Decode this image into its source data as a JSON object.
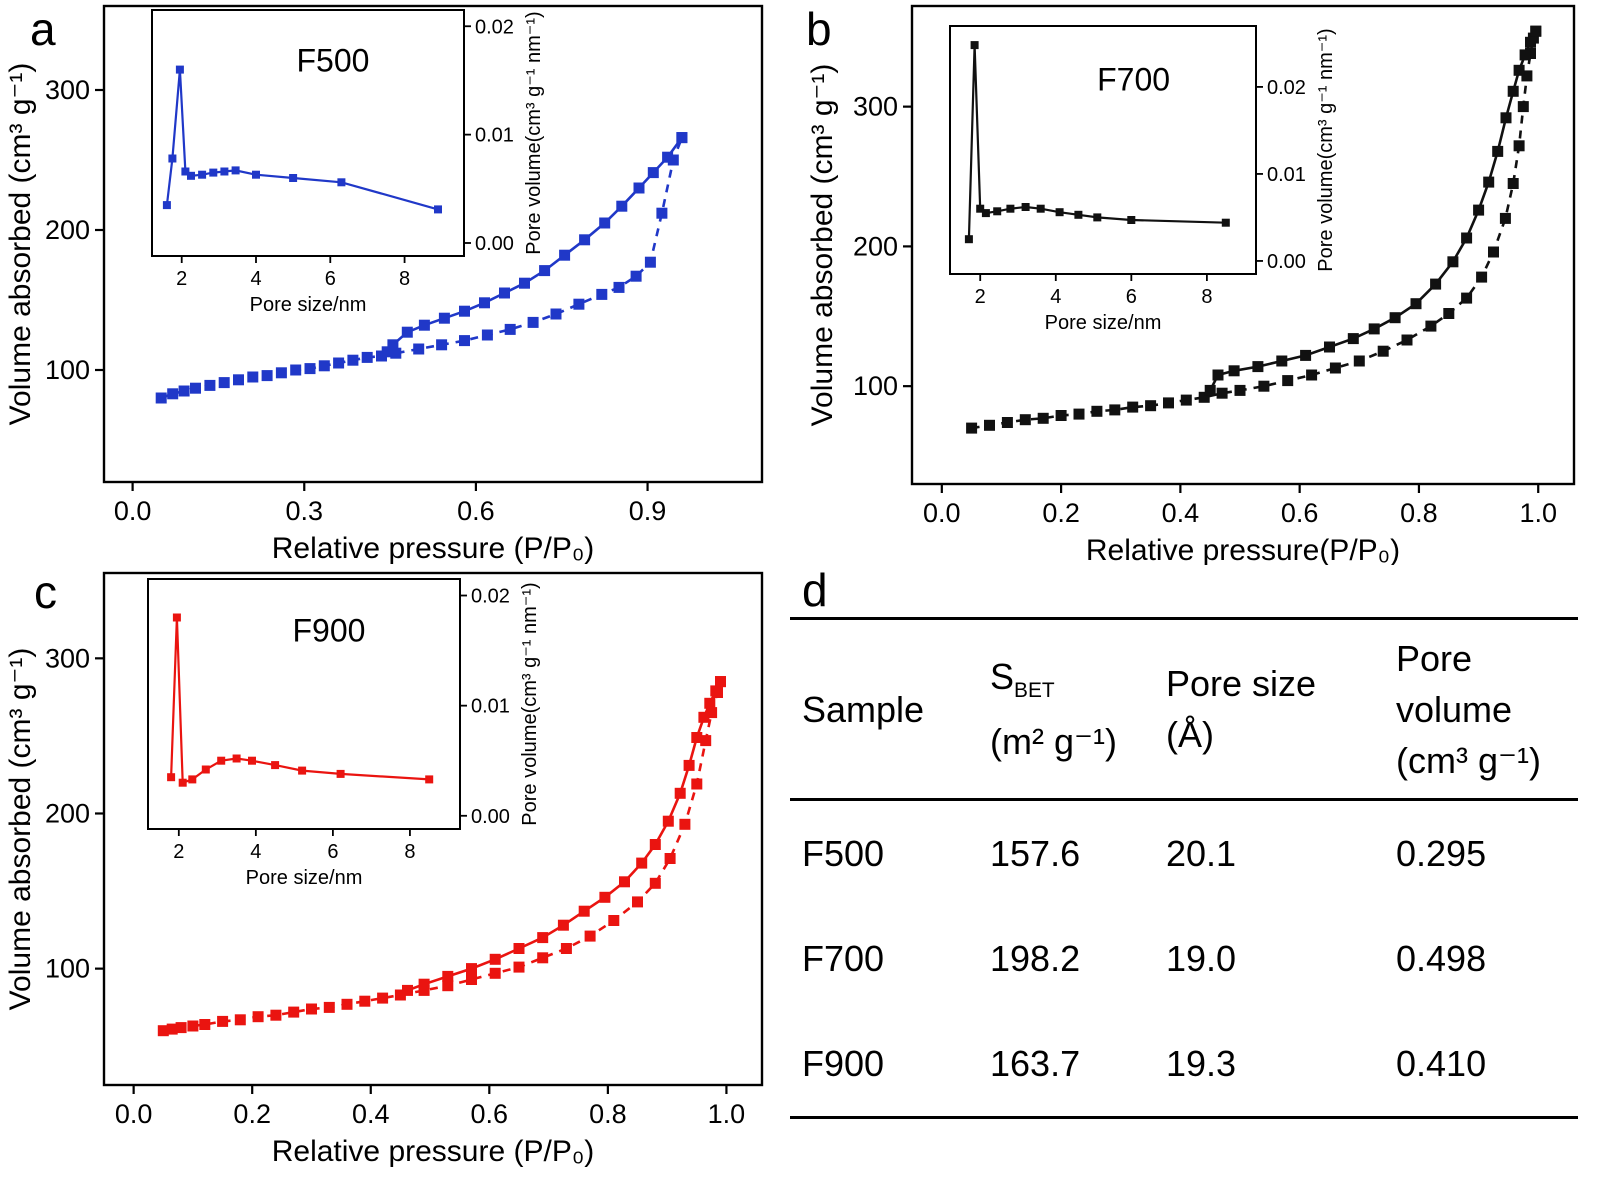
{
  "panels": {
    "a": {
      "letter": "a"
    },
    "b": {
      "letter": "b"
    },
    "c": {
      "letter": "c"
    },
    "d": {
      "letter": "d"
    }
  },
  "chart_data": [
    {
      "type": "line",
      "id": "a",
      "sample": "F500",
      "color": "#2038c8",
      "xlabel": "Relative pressure (P/P₀)",
      "ylabel": "Volume absorbed (cm³ g⁻¹)",
      "xlim": [
        -0.05,
        1.1
      ],
      "ylim": [
        20,
        360
      ],
      "x_ticks": {
        "values": [
          0.0,
          0.3,
          0.6,
          0.9
        ],
        "labels": [
          "0.0",
          "0.3",
          "0.6",
          "0.9"
        ]
      },
      "y_ticks": {
        "values": [
          100,
          200,
          300
        ],
        "labels": [
          "100",
          "200",
          "300"
        ]
      },
      "series": [
        {
          "name": "adsorption",
          "style": "dashed",
          "points": [
            [
              0.05,
              80
            ],
            [
              0.07,
              83
            ],
            [
              0.09,
              85
            ],
            [
              0.11,
              87
            ],
            [
              0.135,
              89
            ],
            [
              0.16,
              91
            ],
            [
              0.185,
              93
            ],
            [
              0.21,
              95
            ],
            [
              0.235,
              96
            ],
            [
              0.26,
              98
            ],
            [
              0.285,
              100
            ],
            [
              0.31,
              101
            ],
            [
              0.335,
              103
            ],
            [
              0.36,
              105
            ],
            [
              0.385,
              107
            ],
            [
              0.41,
              109
            ],
            [
              0.435,
              110
            ],
            [
              0.46,
              112
            ],
            [
              0.5,
              115
            ],
            [
              0.54,
              118
            ],
            [
              0.58,
              121
            ],
            [
              0.62,
              125
            ],
            [
              0.66,
              129
            ],
            [
              0.7,
              134
            ],
            [
              0.74,
              140
            ],
            [
              0.78,
              147
            ],
            [
              0.82,
              154
            ],
            [
              0.85,
              159
            ],
            [
              0.88,
              167
            ],
            [
              0.905,
              177
            ],
            [
              0.925,
              212
            ],
            [
              0.945,
              250
            ],
            [
              0.96,
              266
            ]
          ]
        },
        {
          "name": "desorption",
          "style": "solid",
          "points": [
            [
              0.96,
              266
            ],
            [
              0.935,
              252
            ],
            [
              0.91,
              241
            ],
            [
              0.885,
              230
            ],
            [
              0.855,
              217
            ],
            [
              0.825,
              205
            ],
            [
              0.79,
              193
            ],
            [
              0.755,
              182
            ],
            [
              0.72,
              171
            ],
            [
              0.685,
              162
            ],
            [
              0.65,
              155
            ],
            [
              0.615,
              148
            ],
            [
              0.58,
              142
            ],
            [
              0.545,
              137
            ],
            [
              0.51,
              132
            ],
            [
              0.48,
              127
            ],
            [
              0.455,
              118
            ],
            [
              0.445,
              113
            ]
          ]
        }
      ],
      "inset": {
        "type": "line",
        "label": "F500",
        "label_color": "#2a62ae",
        "xlabel": "Pore size/nm",
        "ylabel": "Pore volume(cm³ g⁻¹ nm⁻¹)",
        "xlim": [
          1.2,
          9.6
        ],
        "ylim": [
          -0.0012,
          0.0215
        ],
        "x_ticks": {
          "values": [
            2,
            4,
            6,
            8
          ],
          "labels": [
            "2",
            "4",
            "6",
            "8"
          ]
        },
        "y_ticks": {
          "values": [
            0,
            0.01,
            0.02
          ],
          "labels": [
            "0.00",
            "0.01",
            "0.02"
          ]
        },
        "points": [
          [
            1.6,
            0.0035
          ],
          [
            1.75,
            0.0078
          ],
          [
            1.95,
            0.016
          ],
          [
            2.1,
            0.0066
          ],
          [
            2.25,
            0.0062
          ],
          [
            2.55,
            0.0063
          ],
          [
            2.85,
            0.0065
          ],
          [
            3.15,
            0.0066
          ],
          [
            3.45,
            0.0067
          ],
          [
            4.0,
            0.0063
          ],
          [
            5.0,
            0.006
          ],
          [
            6.3,
            0.0056
          ],
          [
            8.9,
            0.0031
          ]
        ]
      }
    },
    {
      "type": "line",
      "id": "b",
      "sample": "F700",
      "color": "#111111",
      "xlabel": "Relative pressure(P/P₀)",
      "ylabel": "Volume absorbed (cm³ g⁻¹)",
      "xlim": [
        -0.05,
        1.06
      ],
      "ylim": [
        30,
        372
      ],
      "x_ticks": {
        "values": [
          0.0,
          0.2,
          0.4,
          0.6,
          0.8,
          1.0
        ],
        "labels": [
          "0.0",
          "0.2",
          "0.4",
          "0.6",
          "0.8",
          "1.0"
        ]
      },
      "y_ticks": {
        "values": [
          100,
          200,
          300
        ],
        "labels": [
          "100",
          "200",
          "300"
        ]
      },
      "series": [
        {
          "name": "adsorption",
          "style": "dashed",
          "points": [
            [
              0.05,
              70
            ],
            [
              0.08,
              72
            ],
            [
              0.11,
              74
            ],
            [
              0.14,
              76
            ],
            [
              0.17,
              77
            ],
            [
              0.2,
              79
            ],
            [
              0.23,
              80
            ],
            [
              0.26,
              82
            ],
            [
              0.29,
              83
            ],
            [
              0.32,
              85
            ],
            [
              0.35,
              86
            ],
            [
              0.38,
              88
            ],
            [
              0.41,
              90
            ],
            [
              0.44,
              92
            ],
            [
              0.47,
              95
            ],
            [
              0.5,
              97
            ],
            [
              0.54,
              100
            ],
            [
              0.58,
              104
            ],
            [
              0.62,
              108
            ],
            [
              0.66,
              113
            ],
            [
              0.7,
              118
            ],
            [
              0.74,
              125
            ],
            [
              0.78,
              133
            ],
            [
              0.82,
              143
            ],
            [
              0.85,
              152
            ],
            [
              0.88,
              163
            ],
            [
              0.905,
              178
            ],
            [
              0.925,
              196
            ],
            [
              0.945,
              220
            ],
            [
              0.958,
              245
            ],
            [
              0.968,
              272
            ],
            [
              0.975,
              300
            ],
            [
              0.981,
              322
            ],
            [
              0.987,
              338
            ],
            [
              0.992,
              349
            ],
            [
              0.996,
              354
            ]
          ]
        },
        {
          "name": "desorption",
          "style": "solid",
          "points": [
            [
              0.996,
              354
            ],
            [
              0.987,
              346
            ],
            [
              0.978,
              337
            ],
            [
              0.968,
              326
            ],
            [
              0.958,
              311
            ],
            [
              0.946,
              292
            ],
            [
              0.932,
              268
            ],
            [
              0.917,
              246
            ],
            [
              0.9,
              226
            ],
            [
              0.88,
              206
            ],
            [
              0.857,
              189
            ],
            [
              0.828,
              173
            ],
            [
              0.795,
              159
            ],
            [
              0.76,
              149
            ],
            [
              0.725,
              141
            ],
            [
              0.69,
              134
            ],
            [
              0.65,
              128
            ],
            [
              0.61,
              122
            ],
            [
              0.57,
              118
            ],
            [
              0.53,
              114
            ],
            [
              0.49,
              111
            ],
            [
              0.463,
              108
            ],
            [
              0.45,
              97
            ]
          ]
        }
      ],
      "inset": {
        "type": "line",
        "label": "F700",
        "label_color": "#111111",
        "xlabel": "Pore size/nm",
        "ylabel": "Pore volume(cm³ g⁻¹ nm⁻¹)",
        "xlim": [
          1.2,
          9.3
        ],
        "ylim": [
          -0.0015,
          0.027
        ],
        "x_ticks": {
          "values": [
            2,
            4,
            6,
            8
          ],
          "labels": [
            "2",
            "4",
            "6",
            "8"
          ]
        },
        "y_ticks": {
          "values": [
            0,
            0.01,
            0.02
          ],
          "labels": [
            "0.00",
            "0.01",
            "0.02"
          ]
        },
        "points": [
          [
            1.7,
            0.0025
          ],
          [
            1.85,
            0.0248
          ],
          [
            2.0,
            0.006
          ],
          [
            2.15,
            0.0055
          ],
          [
            2.45,
            0.0057
          ],
          [
            2.8,
            0.006
          ],
          [
            3.2,
            0.0062
          ],
          [
            3.6,
            0.006
          ],
          [
            4.1,
            0.0056
          ],
          [
            4.6,
            0.0053
          ],
          [
            5.1,
            0.005
          ],
          [
            6.0,
            0.0047
          ],
          [
            8.5,
            0.0044
          ]
        ]
      }
    },
    {
      "type": "line",
      "id": "c",
      "sample": "F900",
      "color": "#ea1410",
      "xlabel": "Relative pressure (P/P₀)",
      "ylabel": "Volume absorbed (cm³ g⁻¹)",
      "xlim": [
        -0.05,
        1.06
      ],
      "ylim": [
        25,
        355
      ],
      "x_ticks": {
        "values": [
          0.0,
          0.2,
          0.4,
          0.6,
          0.8,
          1.0
        ],
        "labels": [
          "0.0",
          "0.2",
          "0.4",
          "0.6",
          "0.8",
          "1.0"
        ]
      },
      "y_ticks": {
        "values": [
          100,
          200,
          300
        ],
        "labels": [
          "100",
          "200",
          "300"
        ]
      },
      "series": [
        {
          "name": "adsorption",
          "style": "dashed",
          "points": [
            [
              0.05,
              60
            ],
            [
              0.065,
              61
            ],
            [
              0.08,
              62
            ],
            [
              0.1,
              63
            ],
            [
              0.12,
              64
            ],
            [
              0.15,
              66
            ],
            [
              0.18,
              67
            ],
            [
              0.21,
              69
            ],
            [
              0.24,
              70
            ],
            [
              0.27,
              72
            ],
            [
              0.3,
              74
            ],
            [
              0.33,
              75
            ],
            [
              0.36,
              77
            ],
            [
              0.39,
              79
            ],
            [
              0.42,
              81
            ],
            [
              0.45,
              83
            ],
            [
              0.49,
              86
            ],
            [
              0.53,
              89
            ],
            [
              0.57,
              93
            ],
            [
              0.61,
              97
            ],
            [
              0.65,
              101
            ],
            [
              0.69,
              107
            ],
            [
              0.73,
              113
            ],
            [
              0.77,
              121
            ],
            [
              0.81,
              131
            ],
            [
              0.85,
              143
            ],
            [
              0.88,
              155
            ],
            [
              0.905,
              171
            ],
            [
              0.93,
              193
            ],
            [
              0.95,
              219
            ],
            [
              0.965,
              247
            ],
            [
              0.975,
              265
            ],
            [
              0.985,
              278
            ],
            [
              0.99,
              285
            ]
          ]
        },
        {
          "name": "desorption",
          "style": "solid",
          "points": [
            [
              0.99,
              285
            ],
            [
              0.982,
              279
            ],
            [
              0.972,
              271
            ],
            [
              0.962,
              262
            ],
            [
              0.95,
              249
            ],
            [
              0.937,
              231
            ],
            [
              0.922,
              213
            ],
            [
              0.902,
              195
            ],
            [
              0.88,
              180
            ],
            [
              0.857,
              168
            ],
            [
              0.828,
              156
            ],
            [
              0.795,
              146
            ],
            [
              0.76,
              137
            ],
            [
              0.725,
              128
            ],
            [
              0.69,
              120
            ],
            [
              0.65,
              113
            ],
            [
              0.61,
              106
            ],
            [
              0.57,
              100
            ],
            [
              0.53,
              95
            ],
            [
              0.49,
              90
            ],
            [
              0.462,
              86
            ]
          ]
        }
      ],
      "inset": {
        "type": "line",
        "label": "F900",
        "label_color": "#ea1410",
        "xlabel": "Pore size/nm",
        "ylabel": "Pore volume(cm³ g⁻¹ nm⁻¹)",
        "xlim": [
          1.2,
          9.3
        ],
        "ylim": [
          -0.0012,
          0.0215
        ],
        "x_ticks": {
          "values": [
            2,
            4,
            6,
            8
          ],
          "labels": [
            "2",
            "4",
            "6",
            "8"
          ]
        },
        "y_ticks": {
          "values": [
            0,
            0.01,
            0.02
          ],
          "labels": [
            "0.00",
            "0.01",
            "0.02"
          ]
        },
        "points": [
          [
            1.8,
            0.0035
          ],
          [
            1.95,
            0.018
          ],
          [
            2.1,
            0.003
          ],
          [
            2.35,
            0.0033
          ],
          [
            2.7,
            0.0042
          ],
          [
            3.1,
            0.005
          ],
          [
            3.5,
            0.0052
          ],
          [
            3.9,
            0.005
          ],
          [
            4.5,
            0.0046
          ],
          [
            5.2,
            0.0041
          ],
          [
            6.2,
            0.0038
          ],
          [
            8.5,
            0.0033
          ]
        ]
      }
    }
  ],
  "table": {
    "headers": {
      "sample": "Sample",
      "sbet": {
        "main": "S",
        "sub": "BET",
        "unit": "(m² g⁻¹)"
      },
      "pore_size": {
        "name": "Pore size",
        "unit": "(Å)"
      },
      "pore_volume": {
        "name1": "Pore",
        "name2": "volume",
        "unit": "(cm³ g⁻¹)"
      }
    },
    "rows": [
      {
        "sample": "F500",
        "sbet": "157.6",
        "pore_size": "20.1",
        "pore_volume": "0.295"
      },
      {
        "sample": "F700",
        "sbet": "198.2",
        "pore_size": "19.0",
        "pore_volume": "0.498"
      },
      {
        "sample": "F900",
        "sbet": "163.7",
        "pore_size": "19.3",
        "pore_volume": "0.410"
      }
    ]
  }
}
